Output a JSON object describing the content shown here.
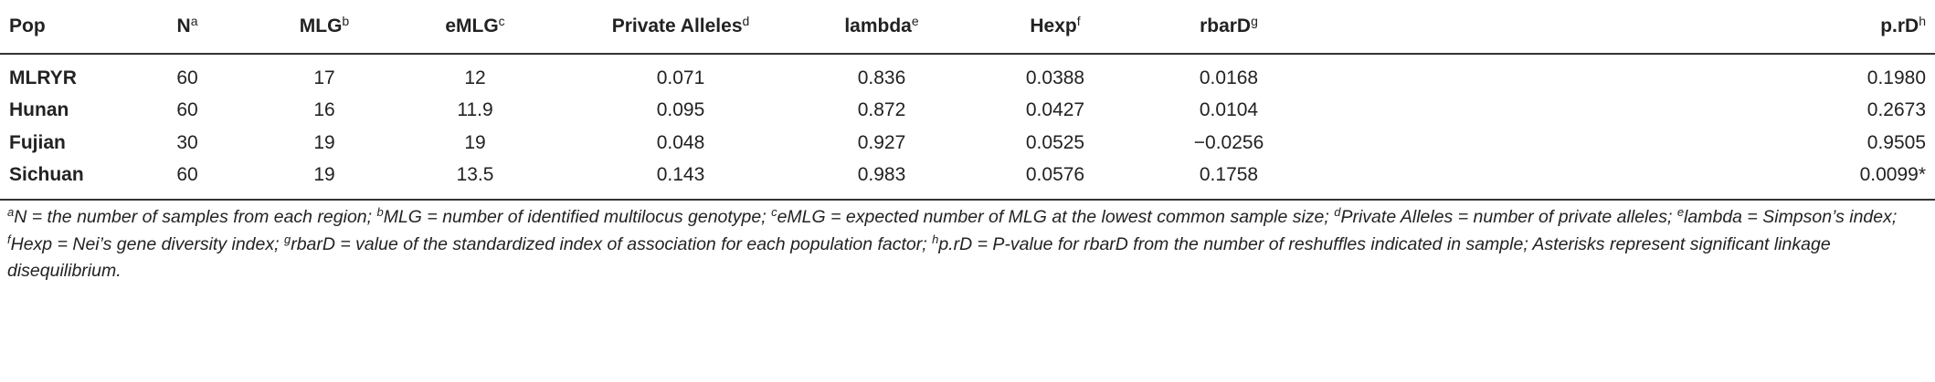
{
  "table": {
    "header": [
      {
        "text": "Pop"
      },
      {
        "text": "N",
        "sup": "a"
      },
      {
        "text": "MLG",
        "sup": "b"
      },
      {
        "text": "eMLG",
        "sup": "c"
      },
      {
        "text": "Private Alleles",
        "sup": "d"
      },
      {
        "text": "lambda",
        "sup": "e"
      },
      {
        "text": "Hexp",
        "sup": "f"
      },
      {
        "text": "rbarD",
        "sup": "g"
      },
      {
        "text": "p.rD",
        "sup": "h"
      }
    ],
    "rows": [
      [
        "MLRYR",
        "60",
        "17",
        "12",
        "0.071",
        "0.836",
        "0.0388",
        "0.0168",
        "0.1980"
      ],
      [
        "Hunan",
        "60",
        "16",
        "11.9",
        "0.095",
        "0.872",
        "0.0427",
        "0.0104",
        "0.2673"
      ],
      [
        "Fujian",
        "30",
        "19",
        "19",
        "0.048",
        "0.927",
        "0.0525",
        "−0.0256",
        "0.9505"
      ],
      [
        "Sichuan",
        "60",
        "19",
        "13.5",
        "0.143",
        "0.983",
        "0.0576",
        "0.1758",
        "0.0099*"
      ]
    ]
  },
  "footnotes": [
    {
      "mark": "a",
      "text": "N = the number of samples from each region;"
    },
    {
      "mark": "b",
      "text": "MLG = number of identified multilocus genotype;"
    },
    {
      "mark": "c",
      "text": "eMLG = expected number of MLG at the lowest common sample size;"
    },
    {
      "mark": "d",
      "text": "Private Alleles = number of private alleles;"
    },
    {
      "mark": "e",
      "text": "lambda = Simpson’s index;"
    },
    {
      "mark": "f",
      "text": "Hexp = Nei’s gene diversity index;"
    },
    {
      "mark": "g",
      "text": "rbarD = value of the standardized index of association for each population factor;"
    },
    {
      "mark": "h",
      "text": "p.rD = P-value for rbarD from the number of reshuffles indicated in sample; Asterisks represent significant linkage disequilibrium."
    }
  ]
}
